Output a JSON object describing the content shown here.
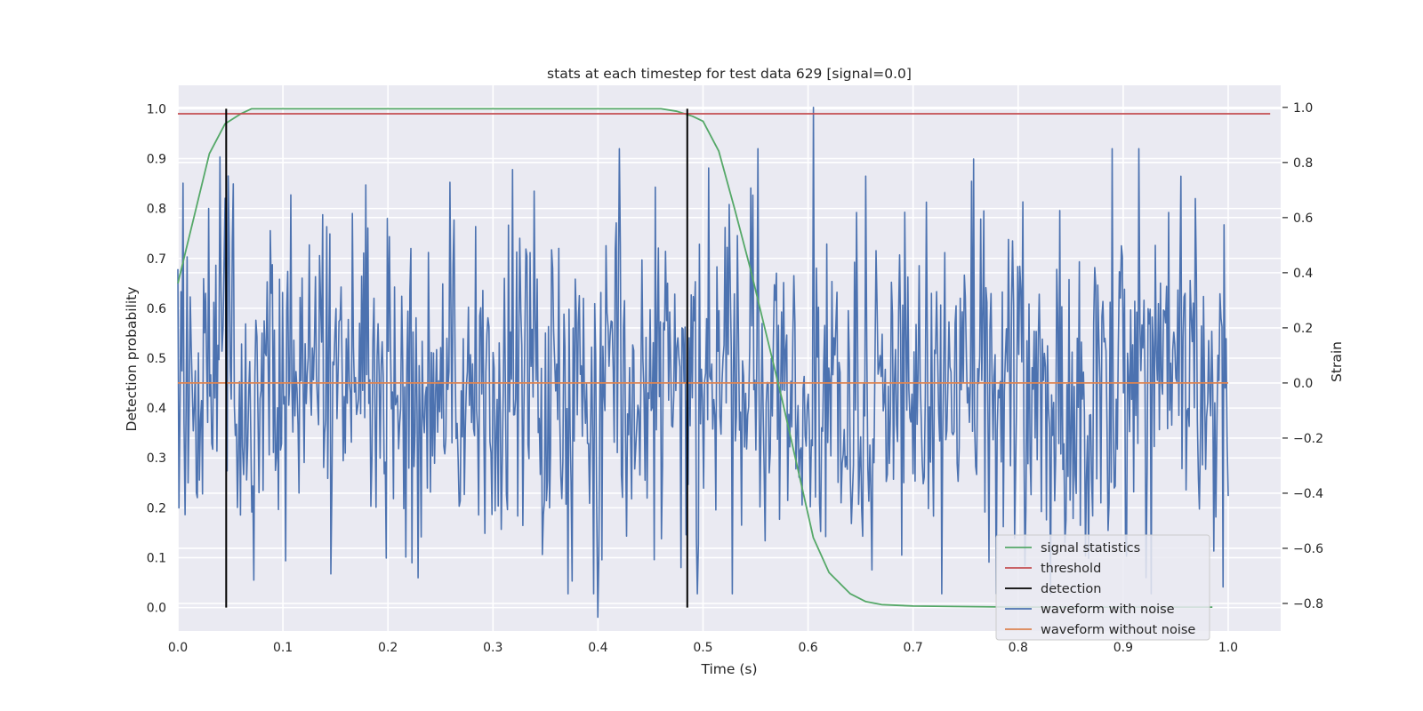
{
  "chart_data": {
    "type": "line",
    "title": "stats at each timestep for test data 629 [signal=0.0]",
    "xlabel": "Time (s)",
    "ylabel_left": "Detection probability",
    "ylabel_right": "Strain",
    "xlim": [
      0.0,
      1.05
    ],
    "ylim_left": [
      -0.047,
      1.047
    ],
    "ylim_right": [
      -0.9,
      1.08
    ],
    "x_ticks": [
      "0.0",
      "0.1",
      "0.2",
      "0.3",
      "0.4",
      "0.5",
      "0.6",
      "0.7",
      "0.8",
      "0.9",
      "1.0"
    ],
    "y_left_ticks": [
      "0.0",
      "0.1",
      "0.2",
      "0.3",
      "0.4",
      "0.5",
      "0.6",
      "0.7",
      "0.8",
      "0.9",
      "1.0"
    ],
    "y_right_ticks": [
      "−0.8",
      "−0.6",
      "−0.4",
      "−0.2",
      "0.0",
      "0.2",
      "0.4",
      "0.6",
      "0.8",
      "1.0"
    ],
    "grid": true,
    "legend_position": "lower-right",
    "colors": {
      "plot_background": "#eaeaf2",
      "signal_statistics": "#55a868",
      "threshold": "#c44e52",
      "detection": "#000000",
      "waveform_with_noise": "#4c72b0",
      "waveform_without_noise": "#dd8452"
    },
    "series": [
      {
        "name": "signal statistics",
        "axis": "left",
        "x": [
          0.0,
          0.015,
          0.03,
          0.045,
          0.06,
          0.07,
          0.1,
          0.2,
          0.3,
          0.4,
          0.46,
          0.475,
          0.49,
          0.5,
          0.515,
          0.53,
          0.545,
          0.56,
          0.575,
          0.59,
          0.605,
          0.62,
          0.64,
          0.655,
          0.67,
          0.7,
          0.75,
          0.8,
          0.9,
          0.985
        ],
        "y": [
          0.65,
          0.78,
          0.91,
          0.97,
          0.99,
          1.0,
          1.0,
          1.0,
          1.0,
          1.0,
          1.0,
          0.995,
          0.985,
          0.975,
          0.915,
          0.8,
          0.68,
          0.55,
          0.42,
          0.28,
          0.14,
          0.07,
          0.028,
          0.012,
          0.006,
          0.003,
          0.002,
          0.001,
          0.001,
          0.001
        ]
      },
      {
        "name": "threshold",
        "axis": "left",
        "x": [
          0.0,
          1.04
        ],
        "y": [
          0.99,
          0.99
        ]
      },
      {
        "name": "detection",
        "axis": "left",
        "vertical_lines_x": [
          0.046,
          0.485
        ],
        "y_range": [
          0.0,
          1.0
        ]
      },
      {
        "name": "waveform with noise",
        "axis": "right",
        "x_range": [
          0.0,
          1.0
        ],
        "n_samples": 1024,
        "y_range_observed": [
          -0.85,
          1.0
        ],
        "notable_points": [
          {
            "x": 0.04,
            "y": 0.82
          },
          {
            "x": 0.4,
            "y": -0.85
          },
          {
            "x": 0.42,
            "y": 0.85
          },
          {
            "x": 0.505,
            "y": 0.78
          },
          {
            "x": 0.605,
            "y": 1.0
          },
          {
            "x": 0.955,
            "y": 0.75
          },
          {
            "x": 0.995,
            "y": -0.74
          }
        ]
      },
      {
        "name": "waveform without noise",
        "axis": "right",
        "x": [
          0.0,
          1.0
        ],
        "y": [
          0.0,
          0.0
        ]
      }
    ],
    "legend": [
      "signal statistics",
      "threshold",
      "detection",
      "waveform with noise",
      "waveform without noise"
    ]
  }
}
